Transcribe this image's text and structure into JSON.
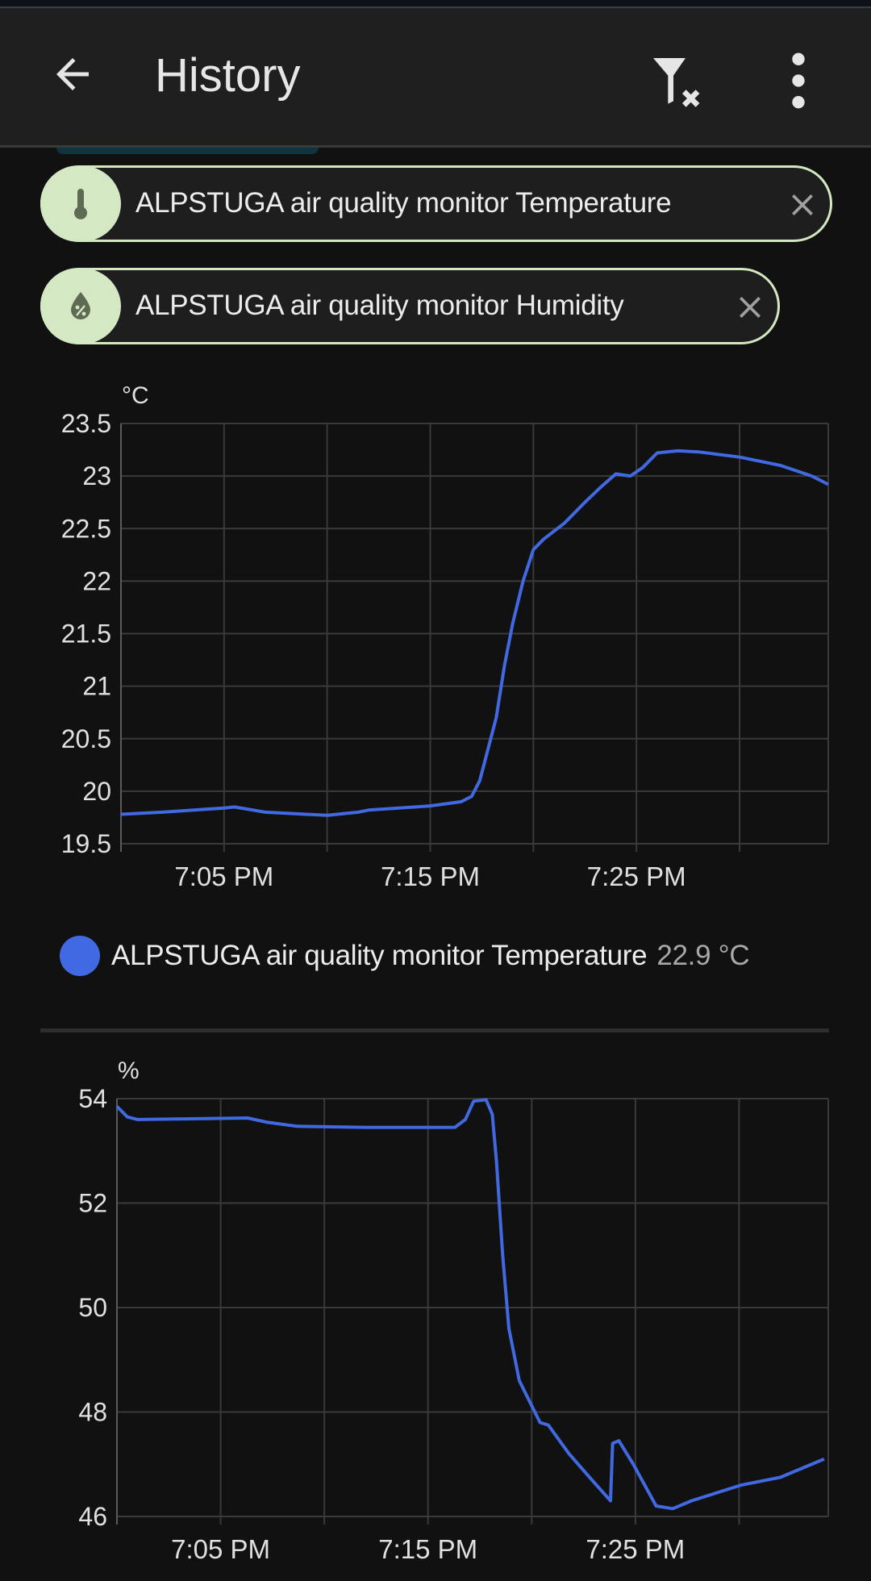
{
  "header": {
    "title": "History",
    "back_icon": "arrow-left-icon",
    "filter_icon": "filter-remove-icon",
    "menu_icon": "dots-vertical-icon"
  },
  "chips": [
    {
      "label": "ALPSTUGA air quality monitor Temperature",
      "icon": "thermometer-icon"
    },
    {
      "label": "ALPSTUGA air quality monitor Humidity",
      "icon": "water-percent-icon"
    }
  ],
  "colors": {
    "accent": "#4169e1",
    "chip_border": "#d3e8c0",
    "chip_icon_bg": "#d4e9c3",
    "background": "#111111",
    "appbar": "#1f1f1f"
  },
  "legend": {
    "name": "ALPSTUGA air quality monitor Temperature",
    "value": "22.9 °C"
  },
  "chart_data": [
    {
      "type": "line",
      "ylabel": "°C",
      "ylim": [
        19.5,
        23.5
      ],
      "yticks": [
        "23.5",
        "23",
        "22.5",
        "22",
        "21.5",
        "21",
        "20.5",
        "20",
        "19.5"
      ],
      "xlim": [
        "7:00 PM",
        "7:34 PM"
      ],
      "xticks": [
        "7:05 PM",
        "7:15 PM",
        "7:25 PM"
      ],
      "grid": true,
      "legend_placement": "bottom",
      "series": [
        {
          "name": "ALPSTUGA air quality monitor Temperature",
          "color": "#4169e1",
          "x": [
            "7:00",
            "7:02",
            "7:05",
            "7:05:30",
            "7:07",
            "7:10",
            "7:11:30",
            "7:12",
            "7:15",
            "7:16:30",
            "7:17",
            "7:17:24",
            "7:17:48",
            "7:18:12",
            "7:18:36",
            "7:19",
            "7:19:30",
            "7:20",
            "7:20:30",
            "7:21:30",
            "7:22:30",
            "7:23:18",
            "7:24",
            "7:24:42",
            "7:25:18",
            "7:26",
            "7:27",
            "7:28",
            "7:30",
            "7:32",
            "7:33:30",
            "7:34:18"
          ],
          "y": [
            19.78,
            19.8,
            19.84,
            19.85,
            19.8,
            19.77,
            19.8,
            19.82,
            19.86,
            19.9,
            19.95,
            20.1,
            20.4,
            20.7,
            21.2,
            21.6,
            22.0,
            22.3,
            22.4,
            22.55,
            22.75,
            22.9,
            23.02,
            23.0,
            23.08,
            23.22,
            23.24,
            23.23,
            23.18,
            23.1,
            23.0,
            22.92
          ]
        }
      ]
    },
    {
      "type": "line",
      "ylabel": "%",
      "ylim": [
        46,
        54
      ],
      "yticks": [
        "54",
        "52",
        "50",
        "48",
        "46"
      ],
      "xlim": [
        "7:00 PM",
        "7:34 PM"
      ],
      "xticks": [
        "7:05 PM",
        "7:15 PM",
        "7:25 PM"
      ],
      "grid": true,
      "series": [
        {
          "color": "#4169e1",
          "x": [
            "7:00",
            "7:00:30",
            "7:01",
            "7:06:18",
            "7:07:12",
            "7:08:42",
            "7:12",
            "7:16:18",
            "7:16:48",
            "7:17:12",
            "7:17:48",
            "7:18:06",
            "7:18:18",
            "7:18:36",
            "7:18:54",
            "7:19:24",
            "7:19:54",
            "7:20:24",
            "7:20:48",
            "7:21:48",
            "7:22:54",
            "7:23:48",
            "7:23:54",
            "7:24:12",
            "7:24:54",
            "7:26",
            "7:26:48",
            "7:27:42",
            "7:30:06",
            "7:32",
            "7:34:06"
          ],
          "y": [
            53.85,
            53.65,
            53.6,
            53.63,
            53.55,
            53.47,
            53.45,
            53.45,
            53.6,
            53.95,
            53.98,
            53.7,
            52.8,
            51.0,
            49.6,
            48.6,
            48.2,
            47.8,
            47.75,
            47.2,
            46.7,
            46.3,
            47.4,
            47.45,
            47.0,
            46.2,
            46.15,
            46.3,
            46.6,
            46.75,
            47.1
          ]
        }
      ]
    }
  ]
}
